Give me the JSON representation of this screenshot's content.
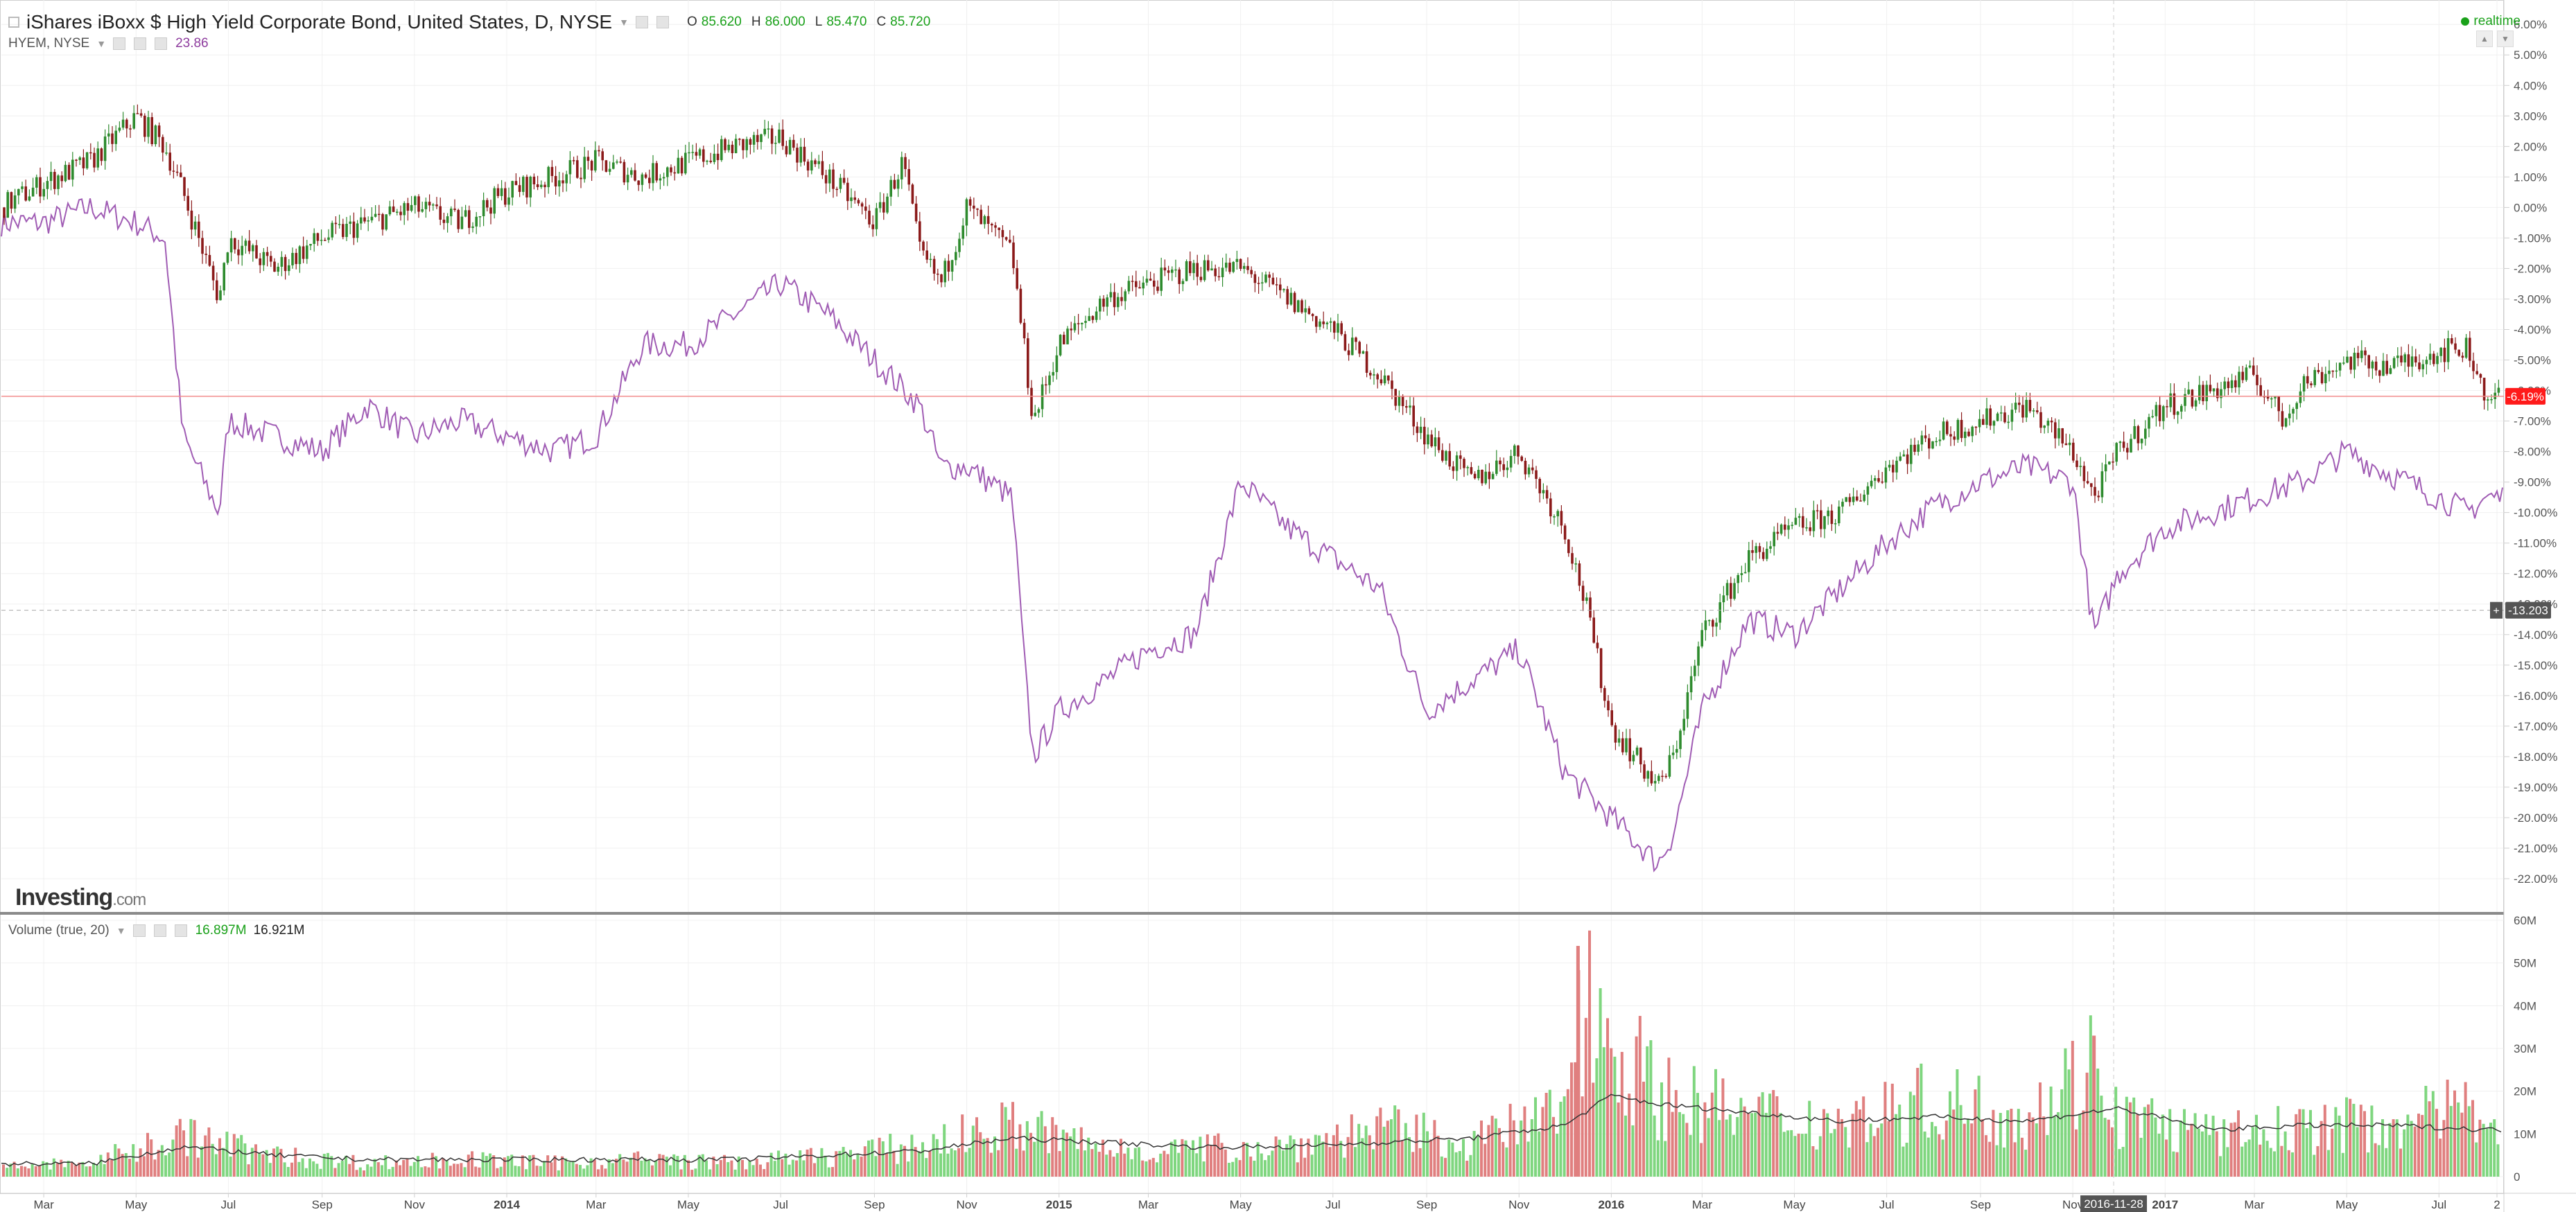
{
  "header": {
    "title": "iShares iBoxx $ High Yield Corporate Bond, United States, D, NYSE",
    "ohlc": [
      {
        "label": "O",
        "value": "85.620"
      },
      {
        "label": "H",
        "value": "86.000"
      },
      {
        "label": "L",
        "value": "85.470"
      },
      {
        "label": "C",
        "value": "85.720"
      }
    ],
    "compare_symbol": "HYEM, NYSE",
    "compare_value": "23.86",
    "realtime": "realtime"
  },
  "volume_header": {
    "label": "Volume (true, 20)",
    "value1": "16.897M",
    "value2": "16.921M"
  },
  "logo": {
    "main": "Investing",
    "suffix": ".com"
  },
  "colors": {
    "up": "#2e8b2e",
    "down": "#8b1a1a",
    "compare_line": "#a05cb4",
    "vol_up": "#7fd67f",
    "vol_down": "#e07f7f",
    "vol_ma": "#333333",
    "current_price_line": "#f28b8b",
    "current_price_badge": "#ff1a1a"
  },
  "chart_data": [
    {
      "type": "line",
      "panel": "price",
      "y_unit": "%",
      "ylim": [
        -22.5,
        6.3
      ],
      "y_ticks": [
        "6.00%",
        "5.00%",
        "4.00%",
        "3.00%",
        "2.00%",
        "1.00%",
        "0.00%",
        "-1.00%",
        "-2.00%",
        "-3.00%",
        "-4.00%",
        "-5.00%",
        "-6.00%",
        "-7.00%",
        "-8.00%",
        "-9.00%",
        "-10.00%",
        "-11.00%",
        "-12.00%",
        "-13.00%",
        "-14.00%",
        "-15.00%",
        "-16.00%",
        "-17.00%",
        "-18.00%",
        "-19.00%",
        "-20.00%",
        "-21.00%",
        "-22.00%"
      ],
      "x_ticks": [
        "Mar",
        "May",
        "Jul",
        "Sep",
        "Nov",
        "2014",
        "Mar",
        "May",
        "Jul",
        "Sep",
        "Nov",
        "2015",
        "Mar",
        "May",
        "Jul",
        "Sep",
        "Nov",
        "2016",
        "Mar",
        "May",
        "Jul",
        "Sep",
        "Nov",
        "2017",
        "Mar",
        "May",
        "Jul",
        "2"
      ],
      "current_value_label": "-6.19%",
      "current_value": -6.19,
      "crosshair_value_label": "-13.203",
      "crosshair_date_label": "2016-11-28",
      "series": [
        {
          "name": "iShares iBoxx $ High Yield Corporate Bond",
          "style": "candles",
          "x": [
            "2013-02",
            "2013-03",
            "2013-04",
            "2013-05",
            "2013-05-20",
            "2013-06",
            "2013-06-25",
            "2013-07",
            "2013-08",
            "2013-09",
            "2013-10",
            "2013-11",
            "2013-12",
            "2014-01",
            "2014-02",
            "2014-03",
            "2014-04",
            "2014-05",
            "2014-06",
            "2014-07",
            "2014-08",
            "2014-09",
            "2014-09-20",
            "2014-10",
            "2014-10-15",
            "2014-11",
            "2014-12",
            "2014-12-15",
            "2015-01",
            "2015-02",
            "2015-03",
            "2015-04",
            "2015-05",
            "2015-06",
            "2015-07",
            "2015-08",
            "2015-09",
            "2015-10",
            "2015-11",
            "2015-12",
            "2015-12-15",
            "2016-01",
            "2016-02",
            "2016-02-11",
            "2016-03",
            "2016-04",
            "2016-05",
            "2016-06",
            "2016-07",
            "2016-08",
            "2016-09",
            "2016-10",
            "2016-11",
            "2016-11-15",
            "2016-12",
            "2017-01",
            "2017-02",
            "2017-03",
            "2017-03-20",
            "2017-04",
            "2017-05",
            "2017-06",
            "2017-07",
            "2017-07-20",
            "2017-08"
          ],
          "values": [
            0.0,
            0.8,
            1.5,
            3.0,
            2.0,
            0.5,
            -3.0,
            -1.0,
            -2.0,
            -1.0,
            -0.5,
            0.0,
            -0.5,
            0.5,
            1.0,
            1.5,
            1.0,
            1.5,
            2.0,
            2.3,
            1.0,
            -0.5,
            1.5,
            -1.5,
            -2.5,
            0.0,
            -1.5,
            -7.0,
            -4.5,
            -3.0,
            -2.5,
            -2.0,
            -2.0,
            -3.0,
            -4.0,
            -5.5,
            -7.5,
            -9.0,
            -8.0,
            -10.5,
            -13.0,
            -17.0,
            -19.0,
            -18.0,
            -14.0,
            -11.5,
            -10.5,
            -10.0,
            -8.5,
            -7.5,
            -7.0,
            -6.5,
            -8.0,
            -9.5,
            -8.0,
            -6.5,
            -6.0,
            -5.5,
            -7.0,
            -5.8,
            -5.0,
            -5.2,
            -4.7,
            -4.6,
            -6.2
          ]
        },
        {
          "name": "HYEM, NYSE",
          "style": "line",
          "x": [
            "2013-02",
            "2013-03",
            "2013-04",
            "2013-05",
            "2013-05-20",
            "2013-06",
            "2013-06-20",
            "2013-06-25",
            "2013-07",
            "2013-08",
            "2013-09",
            "2013-10",
            "2013-11",
            "2013-12",
            "2014-01",
            "2014-02",
            "2014-03",
            "2014-04",
            "2014-05",
            "2014-06",
            "2014-07",
            "2014-08",
            "2014-09",
            "2014-10",
            "2014-10-15",
            "2014-11",
            "2014-12",
            "2014-12-10",
            "2014-12-15",
            "2015-01",
            "2015-02",
            "2015-03",
            "2015-04",
            "2015-05",
            "2015-06",
            "2015-07",
            "2015-08",
            "2015-09",
            "2015-10",
            "2015-11",
            "2015-12",
            "2016-01",
            "2016-02",
            "2016-02-11",
            "2016-03",
            "2016-04",
            "2016-05",
            "2016-06",
            "2016-07",
            "2016-08",
            "2016-09",
            "2016-10",
            "2016-11",
            "2016-11-15",
            "2016-12",
            "2017-01",
            "2017-02",
            "2017-03",
            "2017-04",
            "2017-05",
            "2017-06",
            "2017-07",
            "2017-07-20",
            "2017-08"
          ],
          "values": [
            -0.5,
            -0.5,
            0.0,
            -0.5,
            -1.0,
            -7.5,
            -9.5,
            -10.0,
            -7.0,
            -7.5,
            -8.0,
            -6.5,
            -7.5,
            -7.0,
            -7.5,
            -8.0,
            -7.5,
            -4.5,
            -4.5,
            -3.5,
            -2.5,
            -3.5,
            -5.0,
            -6.5,
            -8.5,
            -8.5,
            -9.5,
            -15.5,
            -18.0,
            -16.5,
            -15.5,
            -14.5,
            -14.0,
            -9.0,
            -10.5,
            -11.5,
            -12.5,
            -16.5,
            -15.5,
            -14.5,
            -18.5,
            -20.0,
            -21.5,
            -20.5,
            -16.5,
            -13.5,
            -14.0,
            -12.5,
            -11.0,
            -9.8,
            -9.0,
            -8.5,
            -9.0,
            -14.0,
            -12.0,
            -10.5,
            -10.0,
            -9.5,
            -9.0,
            -8.0,
            -8.8,
            -9.5,
            -10.0,
            -9.5
          ]
        }
      ]
    },
    {
      "type": "bar",
      "panel": "volume",
      "ylim": [
        0,
        60
      ],
      "y_unit": "M",
      "y_ticks": [
        "60M",
        "50M",
        "40M",
        "30M",
        "20M",
        "10M",
        "0"
      ],
      "x_ticks": [
        "Mar",
        "May",
        "Jul",
        "Sep",
        "Nov",
        "2014",
        "Mar",
        "May",
        "Jul",
        "Sep",
        "Nov",
        "2015",
        "Mar",
        "May",
        "Jul",
        "Sep",
        "Nov",
        "2016",
        "Mar",
        "May",
        "Jul",
        "Sep",
        "Nov",
        "2017",
        "Mar",
        "May",
        "Jul",
        "2"
      ],
      "series": [
        {
          "name": "Volume",
          "x": [
            "2013-02",
            "2013-04",
            "2013-06",
            "2013-08",
            "2013-10",
            "2013-12",
            "2014-02",
            "2014-04",
            "2014-06",
            "2014-08",
            "2014-10",
            "2014-12",
            "2015-02",
            "2015-04",
            "2015-06",
            "2015-08",
            "2015-10",
            "2015-12",
            "2015-12-10",
            "2016-02",
            "2016-04",
            "2016-06",
            "2016-08",
            "2016-10",
            "2016-11-15",
            "2016-12",
            "2017-02",
            "2017-04",
            "2017-06",
            "2017-08"
          ],
          "values": [
            3,
            4,
            12,
            6,
            4,
            5,
            4,
            5,
            4,
            6,
            9,
            15,
            8,
            8,
            9,
            14,
            10,
            19,
            54,
            24,
            18,
            16,
            22,
            18,
            33,
            18,
            12,
            14,
            16,
            20
          ]
        },
        {
          "name": "Volume MA",
          "x": [
            "2013-02",
            "2013-04",
            "2013-06",
            "2013-08",
            "2013-10",
            "2013-12",
            "2014-02",
            "2014-04",
            "2014-06",
            "2014-08",
            "2014-10",
            "2014-12",
            "2015-02",
            "2015-04",
            "2015-06",
            "2015-08",
            "2015-10",
            "2015-12",
            "2016-01",
            "2016-02",
            "2016-04",
            "2016-06",
            "2016-08",
            "2016-10",
            "2016-12",
            "2017-02",
            "2017-04",
            "2017-06",
            "2017-08"
          ],
          "values": [
            3,
            3,
            7,
            5,
            4,
            4,
            4,
            4,
            4,
            5,
            6,
            9,
            8,
            7,
            7,
            8,
            9,
            12,
            19,
            17,
            15,
            13,
            14,
            13,
            16,
            11,
            12,
            12,
            11
          ]
        }
      ]
    }
  ]
}
